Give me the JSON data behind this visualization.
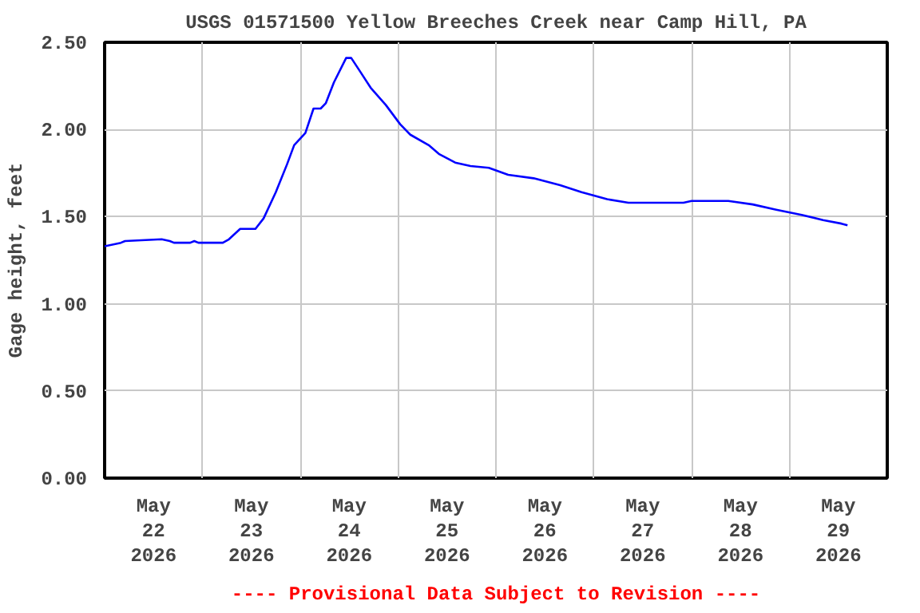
{
  "chart_data": {
    "type": "line",
    "title": "USGS 01571500 Yellow Breeches Creek near Camp Hill, PA",
    "ylabel": "Gage height, feet",
    "annotations": [
      "---- Provisional Data Subject to Revision ----"
    ],
    "x": [
      "2026-05-22T00:00",
      "2026-05-22T04:00",
      "2026-05-22T05:00",
      "2026-05-22T14:00",
      "2026-05-22T16:00",
      "2026-05-22T17:00",
      "2026-05-22T21:00",
      "2026-05-22T22:00",
      "2026-05-22T23:00",
      "2026-05-23T05:00",
      "2026-05-23T06:30",
      "2026-05-23T09:15",
      "2026-05-23T13:00",
      "2026-05-23T15:00",
      "2026-05-23T18:00",
      "2026-05-23T20:45",
      "2026-05-23T22:30",
      "2026-05-24T01:15",
      "2026-05-24T03:15",
      "2026-05-24T05:00",
      "2026-05-24T06:15",
      "2026-05-24T08:15",
      "2026-05-24T11:15",
      "2026-05-24T12:30",
      "2026-05-24T14:45",
      "2026-05-24T17:15",
      "2026-05-24T21:00",
      "2026-05-25T00:30",
      "2026-05-25T03:00",
      "2026-05-25T07:30",
      "2026-05-25T10:00",
      "2026-05-25T14:00",
      "2026-05-25T17:45",
      "2026-05-25T22:15",
      "2026-05-26T03:00",
      "2026-05-26T09:15",
      "2026-05-26T15:45",
      "2026-05-26T21:00",
      "2026-05-27T03:15",
      "2026-05-27T08:30",
      "2026-05-27T22:00",
      "2026-05-28T00:00",
      "2026-05-28T09:00",
      "2026-05-28T15:00",
      "2026-05-28T20:45",
      "2026-05-29T03:00",
      "2026-05-29T08:15",
      "2026-05-29T12:45",
      "2026-05-29T14:15"
    ],
    "series": [
      {
        "color": "#0000ff",
        "values": [
          1.33,
          1.35,
          1.36,
          1.37,
          1.36,
          1.35,
          1.35,
          1.36,
          1.35,
          1.35,
          1.37,
          1.43,
          1.43,
          1.49,
          1.64,
          1.8,
          1.91,
          1.98,
          2.12,
          2.12,
          2.15,
          2.27,
          2.41,
          2.41,
          2.33,
          2.24,
          2.14,
          2.03,
          1.97,
          1.91,
          1.86,
          1.81,
          1.79,
          1.78,
          1.74,
          1.72,
          1.68,
          1.64,
          1.6,
          1.58,
          1.58,
          1.59,
          1.59,
          1.57,
          1.54,
          1.51,
          1.48,
          1.46,
          1.45
        ]
      }
    ],
    "xlim": [
      "2026-05-22T00:00",
      "2026-05-30T00:00"
    ],
    "xticks": [
      {
        "value": "2026-05-22T12:00",
        "label": "May\n22\n2026"
      },
      {
        "value": "2026-05-23T12:00",
        "label": "May\n23\n2026"
      },
      {
        "value": "2026-05-24T12:00",
        "label": "May\n24\n2026"
      },
      {
        "value": "2026-05-25T12:00",
        "label": "May\n25\n2026"
      },
      {
        "value": "2026-05-26T12:00",
        "label": "May\n26\n2026"
      },
      {
        "value": "2026-05-27T12:00",
        "label": "May\n27\n2026"
      },
      {
        "value": "2026-05-28T12:00",
        "label": "May\n28\n2026"
      },
      {
        "value": "2026-05-29T12:00",
        "label": "May\n29\n2026"
      },
      {
        "value": "2026-05-23T00:00",
        "label": null
      },
      {
        "value": "2026-05-24T00:00",
        "label": null
      },
      {
        "value": "2026-05-25T00:00",
        "label": null
      },
      {
        "value": "2026-05-26T00:00",
        "label": null
      },
      {
        "value": "2026-05-27T00:00",
        "label": null
      },
      {
        "value": "2026-05-28T00:00",
        "label": null
      },
      {
        "value": "2026-05-29T00:00",
        "label": null
      }
    ],
    "ylim": [
      0,
      2.5
    ],
    "yticks": [
      {
        "value": 0,
        "label": "0.00"
      },
      {
        "value": 0.5,
        "label": "0.50"
      },
      {
        "value": 1,
        "label": "1.00"
      },
      {
        "value": 1.5,
        "label": "1.50"
      },
      {
        "value": 2,
        "label": "2.00"
      },
      {
        "value": 2.5,
        "label": "2.50"
      }
    ],
    "grid": true,
    "line_style": "solid"
  }
}
